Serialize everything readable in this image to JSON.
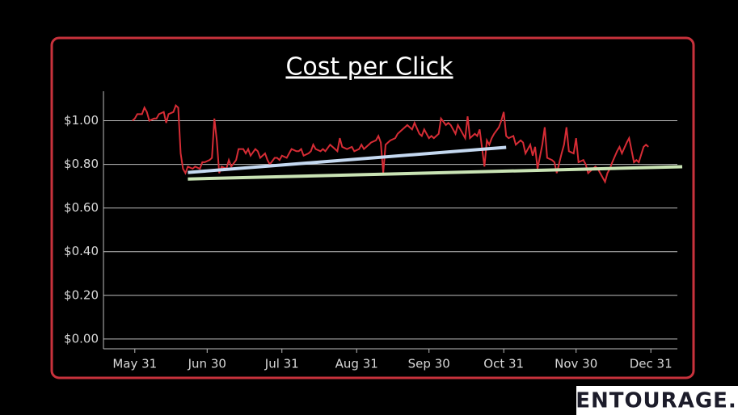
{
  "chart_data": {
    "type": "line",
    "title": "Cost per Click",
    "x": [
      -1,
      0,
      1,
      3,
      4,
      5,
      6,
      8,
      9,
      10,
      12,
      13,
      14,
      16,
      17,
      18,
      19,
      20,
      21,
      22,
      24,
      25,
      27,
      28,
      29,
      31,
      32,
      33,
      34,
      35,
      36,
      38,
      39,
      40,
      42,
      43,
      45,
      46,
      47,
      48,
      50,
      51,
      52,
      54,
      55,
      56,
      58,
      59,
      60,
      61,
      63,
      64,
      65,
      67,
      68,
      69,
      70,
      72,
      73,
      74,
      75,
      77,
      78,
      79,
      81,
      82,
      84,
      85,
      86,
      88,
      90,
      91,
      93,
      94,
      95,
      97,
      98,
      100,
      101,
      102,
      103,
      104,
      105,
      106,
      108,
      109,
      110,
      112,
      113,
      115,
      116,
      118,
      119,
      120,
      122,
      123,
      124,
      126,
      127,
      129,
      130,
      131,
      133,
      134,
      135,
      137,
      138,
      139,
      141,
      142,
      143,
      145,
      146,
      147,
      148,
      149,
      151,
      152,
      153,
      154,
      155,
      157,
      158,
      160,
      161,
      162,
      164,
      165,
      166,
      167,
      169,
      170,
      171,
      173,
      174,
      175,
      177,
      178,
      179,
      180,
      182,
      183,
      184,
      186,
      187,
      188,
      189,
      191,
      192,
      193,
      195,
      196,
      197,
      198,
      200,
      201,
      202,
      204,
      205,
      207,
      208,
      209,
      211,
      212,
      213
    ],
    "series": [
      {
        "color": "#d62c35",
        "values": [
          1.0,
          1.01,
          1.03,
          1.03,
          1.06,
          1.04,
          1.0,
          1.01,
          1.01,
          1.03,
          1.04,
          0.99,
          1.03,
          1.04,
          1.07,
          1.06,
          0.85,
          0.78,
          0.76,
          0.79,
          0.78,
          0.79,
          0.78,
          0.81,
          0.81,
          0.82,
          0.83,
          1.01,
          0.91,
          0.76,
          0.79,
          0.78,
          0.82,
          0.79,
          0.82,
          0.87,
          0.87,
          0.85,
          0.87,
          0.84,
          0.87,
          0.86,
          0.83,
          0.85,
          0.82,
          0.8,
          0.83,
          0.83,
          0.82,
          0.84,
          0.83,
          0.85,
          0.87,
          0.86,
          0.86,
          0.87,
          0.84,
          0.85,
          0.86,
          0.89,
          0.87,
          0.86,
          0.87,
          0.86,
          0.89,
          0.88,
          0.86,
          0.92,
          0.88,
          0.87,
          0.88,
          0.86,
          0.87,
          0.89,
          0.87,
          0.89,
          0.9,
          0.91,
          0.93,
          0.9,
          0.76,
          0.89,
          0.9,
          0.91,
          0.92,
          0.94,
          0.95,
          0.97,
          0.98,
          0.96,
          0.99,
          0.94,
          0.93,
          0.96,
          0.92,
          0.93,
          0.92,
          0.94,
          1.01,
          0.98,
          0.99,
          0.98,
          0.94,
          0.98,
          0.96,
          0.92,
          1.02,
          0.92,
          0.94,
          0.93,
          0.96,
          0.79,
          0.91,
          0.89,
          0.92,
          0.94,
          0.97,
          1.0,
          1.04,
          0.93,
          0.92,
          0.93,
          0.89,
          0.91,
          0.9,
          0.85,
          0.89,
          0.84,
          0.88,
          0.78,
          0.89,
          0.97,
          0.83,
          0.82,
          0.81,
          0.76,
          0.85,
          0.89,
          0.97,
          0.86,
          0.85,
          0.92,
          0.81,
          0.82,
          0.8,
          0.76,
          0.77,
          0.79,
          0.78,
          0.76,
          0.72,
          0.76,
          0.78,
          0.81,
          0.86,
          0.88,
          0.85,
          0.9,
          0.92,
          0.81,
          0.82,
          0.81,
          0.88,
          0.89,
          0.88
        ]
      }
    ],
    "trend_lines": [
      {
        "color": "#c5d9f1",
        "x": [
          22,
          154
        ],
        "values": [
          0.763,
          0.878
        ]
      },
      {
        "color": "#c9e3b4",
        "x": [
          22,
          227
        ],
        "values": [
          0.733,
          0.789
        ]
      }
    ],
    "xlim": [
      -13,
      225
    ],
    "ylim": [
      -0.045,
      1.135
    ],
    "xticks": [
      {
        "value": 0,
        "label": "May 31"
      },
      {
        "value": 30,
        "label": "Jun 30"
      },
      {
        "value": 61,
        "label": "Jul 31"
      },
      {
        "value": 92,
        "label": "Aug 31"
      },
      {
        "value": 122,
        "label": "Sep 30"
      },
      {
        "value": 153,
        "label": "Oct 31"
      },
      {
        "value": 183,
        "label": "Nov 30"
      },
      {
        "value": 214,
        "label": "Dec 31"
      }
    ],
    "yticks": [
      {
        "value": 0,
        "label": "$0.00"
      },
      {
        "value": 0.2,
        "label": "$0.20"
      },
      {
        "value": 0.4,
        "label": "$0.40"
      },
      {
        "value": 0.6,
        "label": "$0.60"
      },
      {
        "value": 0.8,
        "label": "$0.80"
      },
      {
        "value": 1,
        "label": "$1.00"
      }
    ],
    "grid": true
  },
  "logo": "ENTOURAGE."
}
